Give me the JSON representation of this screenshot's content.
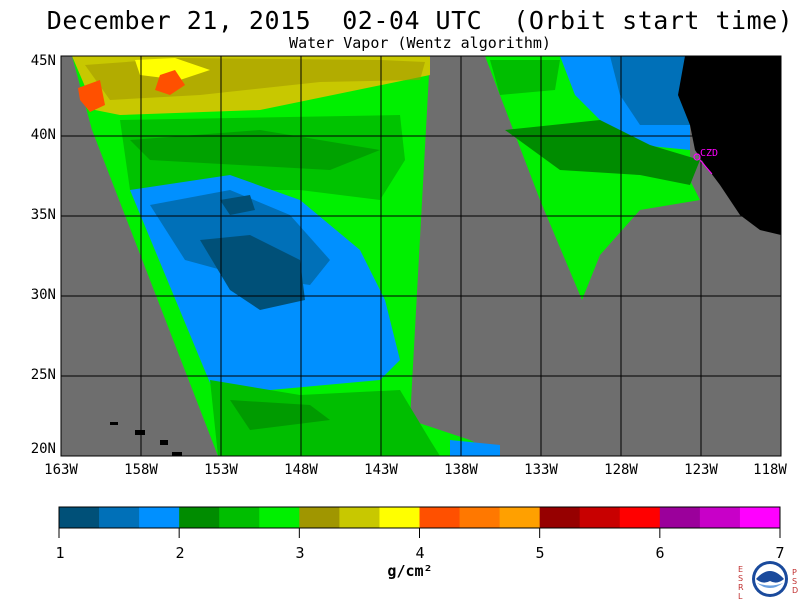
{
  "title": "December 21, 2015  02-04 UTC  (Orbit start time)",
  "subtitle": "Water Vapor (Wentz algorithm)",
  "map": {
    "lat_labels": [
      "45N",
      "40N",
      "35N",
      "30N",
      "25N",
      "20N"
    ],
    "lon_labels": [
      "163W",
      "158W",
      "153W",
      "148W",
      "143W",
      "138W",
      "133W",
      "128W",
      "123W",
      "118W"
    ],
    "station_label": "CZD",
    "colors": {
      "no_data": "#6e6e6e",
      "land": "#000000",
      "station": "#ff00ff",
      "grid": "#000000"
    }
  },
  "colorbar": {
    "ticks": [
      "1",
      "2",
      "3",
      "4",
      "5",
      "6",
      "7"
    ],
    "units": "g/cm²",
    "colors": [
      "#005078",
      "#0070b8",
      "#0090ff",
      "#008c00",
      "#00be00",
      "#00f000",
      "#a09600",
      "#c8c800",
      "#ffff00",
      "#ff5000",
      "#ff7800",
      "#ffa000",
      "#960000",
      "#c80000",
      "#ff0000",
      "#9b009b",
      "#c800c8",
      "#ff00ff"
    ]
  },
  "logo": {
    "left_letters": [
      "E",
      "S",
      "R",
      "L"
    ],
    "right_letters": [
      "P",
      "S",
      "D"
    ],
    "name": "NOAA"
  }
}
